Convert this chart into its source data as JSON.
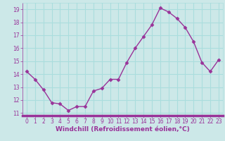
{
  "x": [
    0,
    1,
    2,
    3,
    4,
    5,
    6,
    7,
    8,
    9,
    10,
    11,
    12,
    13,
    14,
    15,
    16,
    17,
    18,
    19,
    20,
    21,
    22,
    23
  ],
  "y": [
    14.2,
    13.6,
    12.8,
    11.8,
    11.7,
    11.2,
    11.5,
    11.5,
    12.7,
    12.9,
    13.6,
    13.6,
    14.9,
    16.0,
    16.9,
    17.8,
    19.1,
    18.8,
    18.3,
    17.6,
    16.5,
    14.9,
    14.2,
    15.1
  ],
  "line_color": "#993399",
  "marker": "D",
  "markersize": 2.5,
  "linewidth": 1.0,
  "xlabel": "Windchill (Refroidissement éolien,°C)",
  "xlabel_fontsize": 6.5,
  "xlim": [
    -0.5,
    23.5
  ],
  "ylim": [
    10.8,
    19.5
  ],
  "yticks": [
    11,
    12,
    13,
    14,
    15,
    16,
    17,
    18,
    19
  ],
  "xticks": [
    0,
    1,
    2,
    3,
    4,
    5,
    6,
    7,
    8,
    9,
    10,
    11,
    12,
    13,
    14,
    15,
    16,
    17,
    18,
    19,
    20,
    21,
    22,
    23
  ],
  "bg_color": "#cce8e8",
  "grid_color": "#aadddd",
  "tick_fontsize": 5.5,
  "xlabel_color": "#993399",
  "bottom_bar_color": "#993399"
}
